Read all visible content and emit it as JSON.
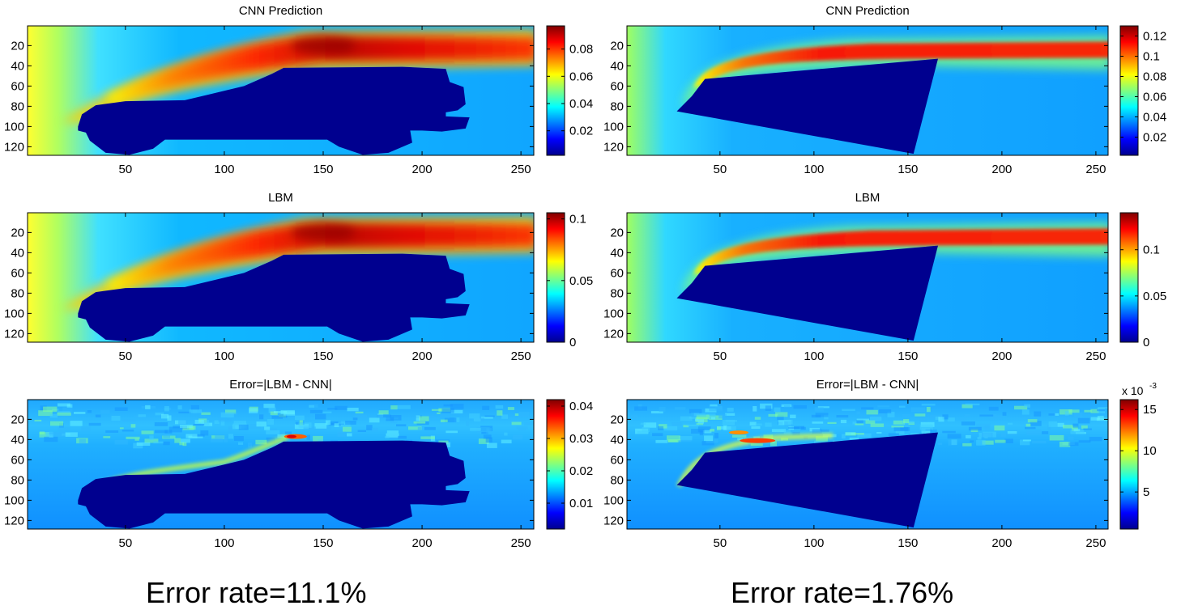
{
  "chart_data": [
    {
      "type": "heatmap",
      "title": "CNN Prediction",
      "shape": "car",
      "xticks": [
        50,
        100,
        150,
        200,
        250
      ],
      "yticks": [
        20,
        40,
        60,
        80,
        100,
        120
      ],
      "xlim": [
        1,
        256
      ],
      "ylim": [
        1,
        128
      ],
      "colorbar": {
        "min": 0.002,
        "max": 0.097,
        "ticks": [
          0.02,
          0.04,
          0.06,
          0.08
        ],
        "tick_labels": [
          "0.02",
          "0.04",
          "0.06",
          "0.08"
        ]
      }
    },
    {
      "type": "heatmap",
      "title": "CNN Prediction",
      "shape": "wedge",
      "xticks": [
        50,
        100,
        150,
        200,
        250
      ],
      "yticks": [
        20,
        40,
        60,
        80,
        100,
        120
      ],
      "xlim": [
        1,
        256
      ],
      "ylim": [
        1,
        128
      ],
      "colorbar": {
        "min": 0.002,
        "max": 0.13,
        "ticks": [
          0.02,
          0.04,
          0.06,
          0.08,
          0.1,
          0.12
        ],
        "tick_labels": [
          "0.02",
          "0.04",
          "0.06",
          "0.08",
          "0.1",
          "0.12"
        ]
      }
    },
    {
      "type": "heatmap",
      "title": "LBM",
      "shape": "car",
      "xticks": [
        50,
        100,
        150,
        200,
        250
      ],
      "yticks": [
        20,
        40,
        60,
        80,
        100,
        120
      ],
      "xlim": [
        1,
        256
      ],
      "ylim": [
        1,
        128
      ],
      "colorbar": {
        "min": 0,
        "max": 0.105,
        "ticks": [
          0,
          0.05,
          0.1
        ],
        "tick_labels": [
          "0",
          "0.05",
          "0.1"
        ]
      }
    },
    {
      "type": "heatmap",
      "title": "LBM",
      "shape": "wedge",
      "xticks": [
        50,
        100,
        150,
        200,
        250
      ],
      "yticks": [
        20,
        40,
        60,
        80,
        100,
        120
      ],
      "xlim": [
        1,
        256
      ],
      "ylim": [
        1,
        128
      ],
      "colorbar": {
        "min": 0,
        "max": 0.14,
        "ticks": [
          0,
          0.05,
          0.1
        ],
        "tick_labels": [
          "0",
          "0.05",
          "0.1"
        ]
      }
    },
    {
      "type": "heatmap",
      "title": "Error=|LBM - CNN|",
      "shape": "car",
      "xticks": [
        50,
        100,
        150,
        200,
        250
      ],
      "yticks": [
        20,
        40,
        60,
        80,
        100,
        120
      ],
      "xlim": [
        1,
        256
      ],
      "ylim": [
        1,
        128
      ],
      "colorbar": {
        "min": 0.002,
        "max": 0.042,
        "ticks": [
          0.01,
          0.02,
          0.03,
          0.04
        ],
        "tick_labels": [
          "0.01",
          "0.02",
          "0.03",
          "0.04"
        ]
      }
    },
    {
      "type": "heatmap",
      "title": "Error=|LBM - CNN|",
      "shape": "wedge",
      "xticks": [
        50,
        100,
        150,
        200,
        250
      ],
      "yticks": [
        20,
        40,
        60,
        80,
        100,
        120
      ],
      "xlim": [
        1,
        256
      ],
      "ylim": [
        1,
        128
      ],
      "colorbar": {
        "min": 0.0005,
        "max": 0.0162,
        "ticks": [
          0.005,
          0.01,
          0.015
        ],
        "tick_labels": [
          "5",
          "10",
          "15"
        ],
        "exponent_label": "x 10"
      }
    }
  ],
  "captions": {
    "left": "Error rate=11.1%",
    "right": "Error rate=1.76%"
  }
}
